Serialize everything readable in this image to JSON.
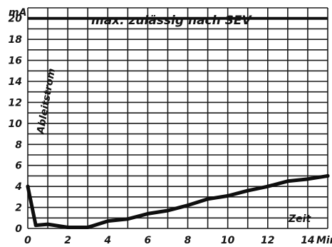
{
  "chart_data": {
    "type": "line",
    "title": "max. zulässig nach SEV",
    "xlabel": "Zeit",
    "ylabel": "Ableitstrom",
    "y_unit": "mA",
    "x_unit": "Min",
    "xlim": [
      0,
      15
    ],
    "ylim": [
      0,
      21
    ],
    "x_ticks": [
      "0",
      "2",
      "4",
      "6",
      "8",
      "10",
      "12",
      "14"
    ],
    "y_ticks": [
      "0",
      "2",
      "4",
      "6",
      "8",
      "10",
      "12",
      "14",
      "16",
      "18",
      "20"
    ],
    "grid": true,
    "limit_value": 20,
    "series": [
      {
        "x": [
          0,
          0.4,
          1,
          2,
          3,
          4,
          5,
          6,
          7,
          8,
          9,
          10,
          11,
          12,
          13,
          14,
          15
        ],
        "y": [
          4,
          0.3,
          0.4,
          0.1,
          0.1,
          0.7,
          0.9,
          1.4,
          1.7,
          2.2,
          2.8,
          3.1,
          3.6,
          4.0,
          4.5,
          4.7,
          5.0
        ]
      }
    ]
  }
}
